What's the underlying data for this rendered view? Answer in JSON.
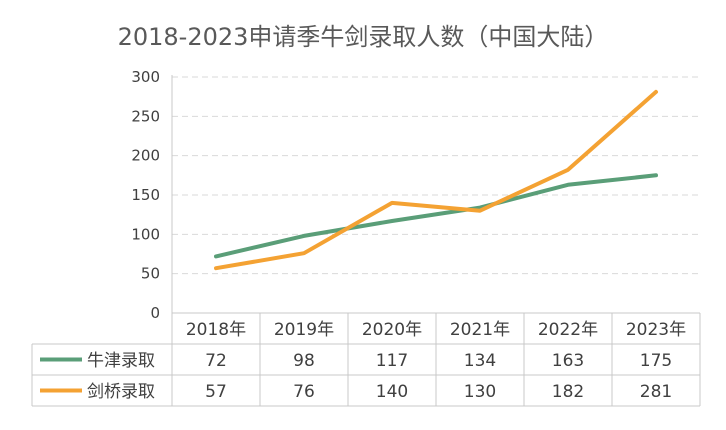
{
  "chart_data": {
    "type": "line",
    "title": "2018-2023申请季牛剑录取人数（中国大陆）",
    "categories": [
      "2018年",
      "2019年",
      "2020年",
      "2021年",
      "2022年",
      "2023年"
    ],
    "ylim": [
      0,
      300
    ],
    "yticks": [
      0,
      50,
      100,
      150,
      200,
      250,
      300
    ],
    "grid": true,
    "legend": "data-table",
    "series": [
      {
        "name": "牛津录取",
        "color": "#5a9e78",
        "values": [
          72,
          98,
          117,
          134,
          163,
          175
        ]
      },
      {
        "name": "剑桥录取",
        "color": "#f4a233",
        "values": [
          57,
          76,
          140,
          130,
          182,
          281
        ]
      }
    ]
  }
}
